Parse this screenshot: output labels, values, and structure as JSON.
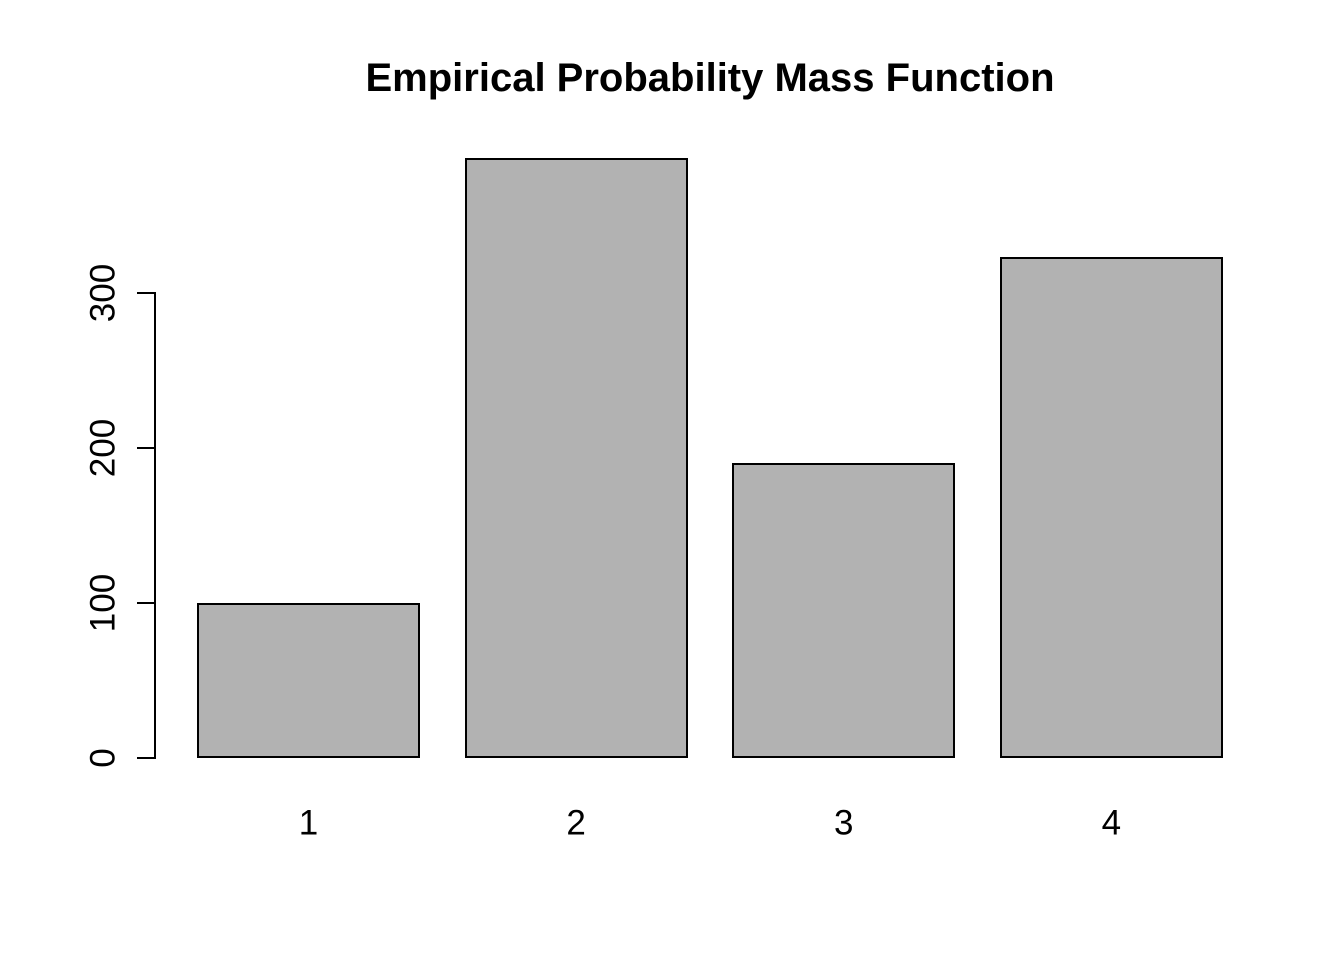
{
  "chart_data": {
    "type": "bar",
    "title": "Empirical Probability Mass Function",
    "categories": [
      "1",
      "2",
      "3",
      "4"
    ],
    "values": [
      100,
      387,
      190,
      323
    ],
    "xlabel": "",
    "ylabel": "",
    "yticks": [
      0,
      100,
      200,
      300
    ],
    "ylim": [
      0,
      390
    ],
    "grid": false,
    "legend": false,
    "colors": {
      "bar_fill": "#b2b2b2",
      "bar_border": "#000000",
      "axis": "#000000",
      "text": "#000000",
      "background": "#ffffff"
    }
  }
}
